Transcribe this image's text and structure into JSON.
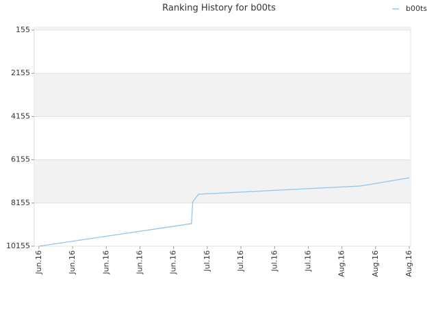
{
  "chart_data": {
    "type": "line",
    "title": "Ranking History for b00ts",
    "x": [
      0,
      4.53,
      4.57,
      4.74,
      9.55,
      11
    ],
    "series": [
      {
        "name": "b00ts",
        "color": "#90c4ee",
        "values": [
          10155,
          9111,
          8098,
          7750,
          7370,
          6990
        ]
      }
    ],
    "xlim": [
      -0.14,
      11.04
    ],
    "xticks": [
      {
        "value": 0,
        "label": "Jun.16"
      },
      {
        "value": 1,
        "label": "Jun.16"
      },
      {
        "value": 2,
        "label": "Jun.16"
      },
      {
        "value": 3,
        "label": "Jun.16"
      },
      {
        "value": 4,
        "label": "Jun.16"
      },
      {
        "value": 5,
        "label": "Jul.16"
      },
      {
        "value": 6,
        "label": "Jul.16"
      },
      {
        "value": 7,
        "label": "Jul.16"
      },
      {
        "value": 8,
        "label": "Jul.16"
      },
      {
        "value": 9,
        "label": "Aug.16"
      },
      {
        "value": 10,
        "label": "Aug.16"
      },
      {
        "value": 11,
        "label": "Aug.16"
      }
    ],
    "ylim": [
      10155,
      28
    ],
    "yticks": [
      155,
      2155,
      4155,
      6155,
      8155,
      10155
    ],
    "legend": "top-right"
  }
}
